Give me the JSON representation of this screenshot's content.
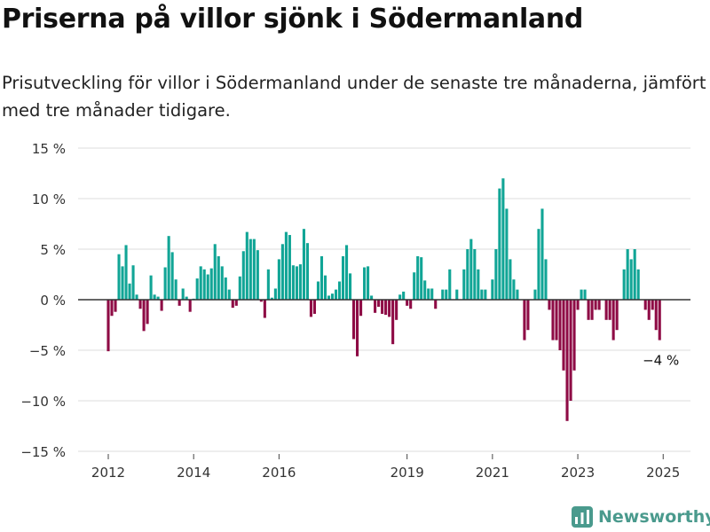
{
  "title": "Priserna på villor sjönk i Södermanland",
  "subtitle": "Prisutveckling för villor i Södermanland under de senaste tre månaderna, jämfört med tre månader tidigare.",
  "brand": {
    "name": "Newsworthy",
    "icon": "newsworthy-logo-icon"
  },
  "colors": {
    "positive": "#11a596",
    "negative": "#8e0b45",
    "grid": "#dcdcdc",
    "zero": "#333333"
  },
  "chart_data": {
    "type": "bar",
    "x_unit": "month",
    "x_start": "2012-01",
    "y_unit": "%",
    "ylim": [
      -15,
      15
    ],
    "yticks": [
      15,
      10,
      5,
      0,
      -5,
      -10,
      -15
    ],
    "ytick_labels": [
      "15 %",
      "10 %",
      "5 %",
      "0 %",
      "−5 %",
      "−10 %",
      "−15 %"
    ],
    "xticks": [
      "2012",
      "2014",
      "2016",
      "2019",
      "2021",
      "2023",
      "2025"
    ],
    "grid": true,
    "annotation": "−4 %",
    "values": [
      -5.1,
      -1.6,
      -1.2,
      4.5,
      3.3,
      5.4,
      1.6,
      3.4,
      0.5,
      -0.9,
      -3.1,
      -2.4,
      2.4,
      0.5,
      0.3,
      -1.1,
      3.2,
      6.3,
      4.7,
      2.0,
      -0.6,
      1.1,
      0.3,
      -1.2,
      0.1,
      2.1,
      3.3,
      3.0,
      2.5,
      3.1,
      5.5,
      4.3,
      3.3,
      2.2,
      1.0,
      -0.8,
      -0.6,
      2.3,
      4.8,
      6.7,
      6.0,
      6.0,
      4.9,
      -0.2,
      -1.8,
      3.0,
      0.2,
      1.1,
      4.0,
      5.5,
      6.7,
      6.4,
      3.4,
      3.3,
      3.5,
      7.0,
      5.6,
      -1.7,
      -1.4,
      1.8,
      4.3,
      2.4,
      0.4,
      0.6,
      1.0,
      1.8,
      4.3,
      5.4,
      2.6,
      -3.9,
      -5.6,
      -1.6,
      3.2,
      3.3,
      0.4,
      -1.3,
      -0.7,
      -1.4,
      -1.5,
      -1.7,
      -4.4,
      -2.0,
      0.5,
      0.8,
      -0.6,
      -0.9,
      2.7,
      4.3,
      4.2,
      1.9,
      1.1,
      1.1,
      -0.9,
      0.0,
      1.0,
      1.0,
      3.0,
      0.0,
      1.0,
      0.0,
      3.0,
      5.0,
      6.0,
      5.0,
      3.0,
      1.0,
      1.0,
      0.0,
      2.0,
      5.0,
      11.0,
      12.0,
      9.0,
      4.0,
      2.0,
      1.0,
      0.0,
      -4.0,
      -3.0,
      0.0,
      1.0,
      7.0,
      9.0,
      4.0,
      -1.0,
      -4.0,
      -4.0,
      -5.0,
      -7.0,
      -12.0,
      -10.0,
      -7.0,
      -1.0,
      1.0,
      1.0,
      -2.0,
      -2.0,
      -1.0,
      -1.0,
      0.0,
      -2.0,
      -2.0,
      -4.0,
      -3.0,
      0.0,
      3.0,
      5.0,
      4.0,
      5.0,
      3.0,
      0.0,
      -1.0,
      -2.0,
      -1.0,
      -3.0,
      -4.0
    ]
  }
}
